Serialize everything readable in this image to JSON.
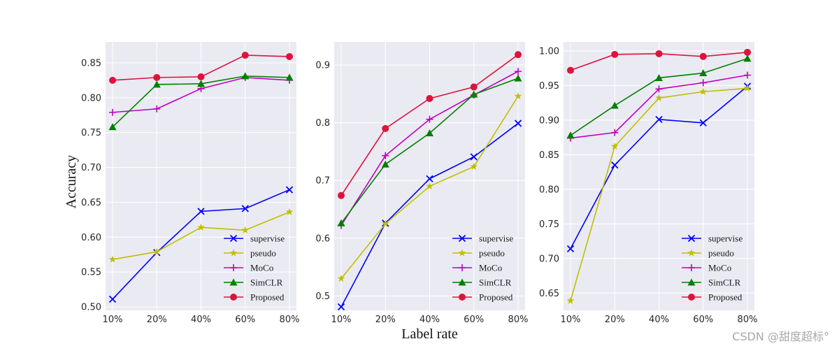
{
  "watermark": "CSDN @甜度超标°",
  "ylabel": "Accuracy",
  "xlabel": "Label rate",
  "colors": {
    "supervise": "#0000ff",
    "pseudo": "#bfbf00",
    "MoCo": "#bf00bf",
    "SimCLR": "#008000",
    "Proposed": "#dc143c",
    "panel_bg": "#eaeaf2",
    "grid": "#ffffff"
  },
  "chart_data": [
    {
      "type": "line",
      "categories": [
        "10%",
        "20%",
        "40%",
        "60%",
        "80%"
      ],
      "ylim": [
        0.495,
        0.88
      ],
      "yticks": [
        "0.50",
        "0.55",
        "0.60",
        "0.65",
        "0.70",
        "0.75",
        "0.80",
        "0.85"
      ],
      "ylabel": "Accuracy",
      "xlabel": "",
      "series": [
        {
          "name": "supervise",
          "marker": "x",
          "values": [
            0.511,
            0.578,
            0.637,
            0.641,
            0.668
          ]
        },
        {
          "name": "pseudo",
          "marker": "star",
          "values": [
            0.568,
            0.579,
            0.614,
            0.61,
            0.636
          ]
        },
        {
          "name": "MoCo",
          "marker": "plus",
          "values": [
            0.779,
            0.784,
            0.813,
            0.829,
            0.825
          ]
        },
        {
          "name": "SimCLR",
          "marker": "triangle",
          "values": [
            0.758,
            0.819,
            0.82,
            0.831,
            0.829
          ]
        },
        {
          "name": "Proposed",
          "marker": "circle",
          "values": [
            0.825,
            0.829,
            0.83,
            0.861,
            0.859
          ]
        }
      ]
    },
    {
      "type": "line",
      "categories": [
        "10%",
        "20%",
        "40%",
        "60%",
        "80%"
      ],
      "ylim": [
        0.475,
        0.94
      ],
      "yticks": [
        "0.5",
        "0.6",
        "0.7",
        "0.8",
        "0.9"
      ],
      "ylabel": "",
      "xlabel": "Label rate",
      "series": [
        {
          "name": "supervise",
          "marker": "x",
          "values": [
            0.481,
            0.626,
            0.703,
            0.741,
            0.799
          ]
        },
        {
          "name": "pseudo",
          "marker": "star",
          "values": [
            0.53,
            0.625,
            0.69,
            0.724,
            0.846
          ]
        },
        {
          "name": "MoCo",
          "marker": "plus",
          "values": [
            0.622,
            0.743,
            0.806,
            0.848,
            0.889
          ]
        },
        {
          "name": "SimCLR",
          "marker": "triangle",
          "values": [
            0.626,
            0.728,
            0.782,
            0.849,
            0.877
          ]
        },
        {
          "name": "Proposed",
          "marker": "circle",
          "values": [
            0.674,
            0.79,
            0.842,
            0.862,
            0.918
          ]
        }
      ]
    },
    {
      "type": "line",
      "categories": [
        "10%",
        "20%",
        "40%",
        "60%",
        "80%"
      ],
      "ylim": [
        0.625,
        1.013
      ],
      "yticks": [
        "0.65",
        "0.70",
        "0.75",
        "0.80",
        "0.85",
        "0.90",
        "0.95",
        "1.00"
      ],
      "ylabel": "",
      "xlabel": "",
      "series": [
        {
          "name": "supervise",
          "marker": "x",
          "values": [
            0.714,
            0.835,
            0.901,
            0.896,
            0.949
          ]
        },
        {
          "name": "pseudo",
          "marker": "star",
          "values": [
            0.639,
            0.862,
            0.932,
            0.941,
            0.946
          ]
        },
        {
          "name": "MoCo",
          "marker": "plus",
          "values": [
            0.874,
            0.882,
            0.945,
            0.954,
            0.965
          ]
        },
        {
          "name": "SimCLR",
          "marker": "triangle",
          "values": [
            0.878,
            0.921,
            0.961,
            0.968,
            0.989
          ]
        },
        {
          "name": "Proposed",
          "marker": "circle",
          "values": [
            0.972,
            0.995,
            0.996,
            0.992,
            0.998
          ]
        }
      ]
    }
  ]
}
